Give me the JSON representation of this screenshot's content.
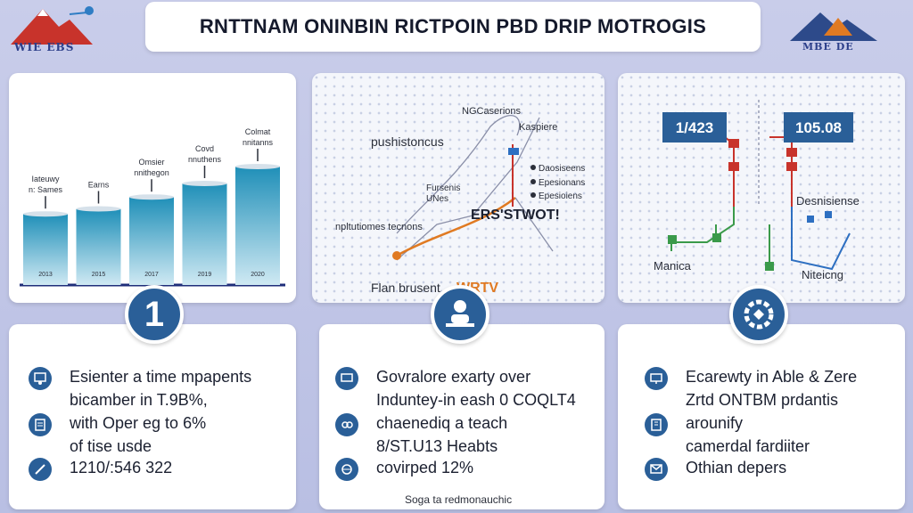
{
  "header": {
    "title": "RNTTNAM ONINBIN RICTPOIN PBD DRIP MOTROGIS",
    "logo_left_text": "WIE EBS",
    "logo_right_text": "MBE DE"
  },
  "chart_data": {
    "type": "bar",
    "categories": [
      "2013",
      "2015",
      "2017",
      "2019",
      "2020"
    ],
    "values": [
      42,
      45,
      52,
      60,
      70
    ],
    "title": "",
    "xlabel": "",
    "ylabel": "",
    "ylim": [
      0,
      100
    ],
    "annotations": [
      "Iateuwy\nn: Sames",
      "Earns",
      "Omsier\nnnithegon",
      "Covd\nnnuthens",
      "Colmat\nnnitanns"
    ],
    "colors": {
      "top": "#1f8fb8",
      "bottom": "#cfe9f3"
    }
  },
  "diagram": {
    "labels": {
      "top": "NGCaserions",
      "right_top": "Kaspiere",
      "left_main": "pushistoncus",
      "mid": "Fursenis\nUNes",
      "list_1": "Daosiseens",
      "list_2": "Epesionans",
      "list_3": "Epesioiens",
      "big": "ERS'STWOT!",
      "bottom_left": "npltutiomes tecnons",
      "footer_left": "Flan brusent",
      "footer_logo": "WRTV"
    }
  },
  "circuit": {
    "left_box": "1/423",
    "right_box": "105.08",
    "label_right": "Desnisiense",
    "label_left_bottom": "Manica",
    "label_right_bottom": "Niteicng"
  },
  "cards": [
    {
      "items": [
        {
          "icon": "user-board-icon",
          "text": "Esienter a time mpapents\nbicamber in T.9B%,"
        },
        {
          "icon": "document-icon",
          "text": "with Oper eg to 6%\nof tise usde"
        },
        {
          "icon": "pen-icon",
          "text": "1210/:546 322"
        }
      ]
    },
    {
      "items": [
        {
          "icon": "message-icon",
          "text": "Govralore exarty over\nInduntey-in eash 0 COQLT4"
        },
        {
          "icon": "link-icon",
          "text": "chaenediq a teach\n8/ST.U13 Heabts"
        },
        {
          "icon": "globe-icon",
          "text": "covirped 12%"
        }
      ]
    },
    {
      "items": [
        {
          "icon": "monitor-icon",
          "text": "Ecarewty in Able & Zere\nZrtd ONTBM prdantis"
        },
        {
          "icon": "building-icon",
          "text": "arounify\ncamerdal fardiiter"
        },
        {
          "icon": "mail-icon",
          "text": "Othian depers"
        }
      ]
    }
  ],
  "badges": {
    "first": "1"
  },
  "footer": {
    "note": "Soga ta redmonauchic"
  }
}
